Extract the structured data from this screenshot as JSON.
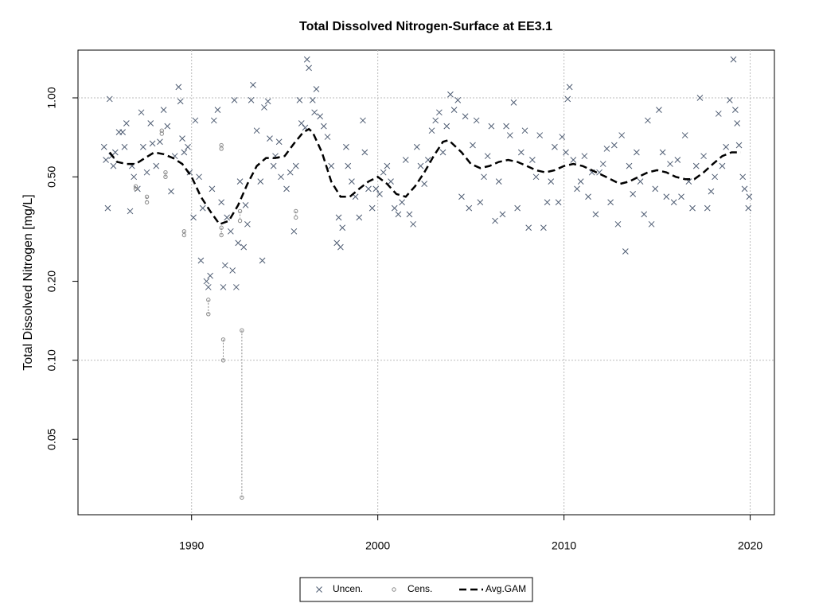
{
  "chart_data": {
    "type": "scatter",
    "title": "Total Dissolved Nitrogen-Surface at EE3.1",
    "y_label": "Total Dissolved Nitrogen [mg/L]",
    "xlim": [
      1983.9,
      2021.3
    ],
    "xticks": [
      1990,
      2000,
      2010,
      2020
    ],
    "ylim": [
      0.0258,
      1.52
    ],
    "ylog": true,
    "yticks": [
      0.05,
      {
        "value": 0.1,
        "label": "0.10"
      },
      {
        "value": 0.2,
        "label": "0.20"
      },
      {
        "value": 0.5,
        "label": "0.50"
      },
      {
        "value": 1,
        "label": "1.00"
      }
    ],
    "grid": true,
    "legend": "bottom",
    "series": [
      {
        "name": "Uncen.",
        "color": "#4f5d73",
        "kind": "points",
        "x": [
          1985.3,
          1985.4,
          1985.5,
          1985.6,
          1985.7,
          1985.8,
          1985.9,
          1986.1,
          1986.3,
          1986.4,
          1986.5,
          1986.7,
          1986.8,
          1986.9,
          1987.1,
          1987.3,
          1987.4,
          1987.6,
          1987.8,
          1987.9,
          1988.1,
          1988.3,
          1988.5,
          1988.7,
          1988.9,
          1989.1,
          1989.3,
          1989.4,
          1989.5,
          1989.6,
          1989.8,
          1989.9,
          1990.1,
          1990.2,
          1990.4,
          1990.5,
          1990.6,
          1990.8,
          1990.9,
          1991.0,
          1991.1,
          1991.2,
          1991.4,
          1991.6,
          1991.7,
          1991.8,
          1991.9,
          1992.1,
          1992.2,
          1992.3,
          1992.4,
          1992.5,
          1992.6,
          1992.8,
          1992.9,
          1993.0,
          1993.2,
          1993.3,
          1993.5,
          1993.7,
          1993.8,
          1993.9,
          1994.1,
          1994.2,
          1994.4,
          1994.5,
          1994.7,
          1994.8,
          1995.1,
          1995.3,
          1995.5,
          1995.6,
          1995.8,
          1995.9,
          1996.1,
          1996.2,
          1996.3,
          1996.5,
          1996.6,
          1996.7,
          1996.9,
          1997.1,
          1997.3,
          1997.5,
          1997.8,
          1997.9,
          1998.0,
          1998.1,
          1998.3,
          1998.4,
          1998.6,
          1998.8,
          1999.0,
          1999.2,
          1999.3,
          1999.5,
          1999.7,
          1999.9,
          2000.1,
          2000.3,
          2000.5,
          2000.7,
          2000.9,
          2001.1,
          2001.3,
          2001.5,
          2001.7,
          2001.9,
          2002.1,
          2002.3,
          2002.5,
          2002.7,
          2002.9,
          2003.1,
          2003.3,
          2003.5,
          2003.7,
          2003.9,
          2004.1,
          2004.3,
          2004.5,
          2004.7,
          2004.9,
          2005.1,
          2005.3,
          2005.5,
          2005.7,
          2005.9,
          2006.1,
          2006.3,
          2006.5,
          2006.7,
          2006.9,
          2007.1,
          2007.3,
          2007.5,
          2007.7,
          2007.9,
          2008.1,
          2008.3,
          2008.5,
          2008.7,
          2008.9,
          2009.1,
          2009.3,
          2009.5,
          2009.7,
          2009.9,
          2010.1,
          2010.2,
          2010.3,
          2010.5,
          2010.7,
          2010.9,
          2011.1,
          2011.3,
          2011.5,
          2011.7,
          2011.9,
          2012.1,
          2012.3,
          2012.5,
          2012.7,
          2012.9,
          2013.1,
          2013.3,
          2013.5,
          2013.7,
          2013.9,
          2014.1,
          2014.3,
          2014.5,
          2014.7,
          2014.9,
          2015.1,
          2015.3,
          2015.5,
          2015.7,
          2015.9,
          2016.1,
          2016.3,
          2016.5,
          2016.7,
          2016.9,
          2017.1,
          2017.3,
          2017.5,
          2017.7,
          2017.9,
          2018.1,
          2018.3,
          2018.5,
          2018.7,
          2018.9,
          2019.1,
          2019.2,
          2019.3,
          2019.4,
          2019.6,
          2019.7,
          2019.9,
          2019.95
        ],
        "values": [
          0.65,
          0.58,
          0.38,
          0.99,
          0.6,
          0.55,
          0.62,
          0.74,
          0.74,
          0.65,
          0.8,
          0.37,
          0.55,
          0.5,
          0.45,
          0.88,
          0.65,
          0.52,
          0.8,
          0.67,
          0.55,
          0.68,
          0.9,
          0.78,
          0.44,
          0.6,
          1.1,
          0.97,
          0.7,
          0.62,
          0.65,
          0.52,
          0.35,
          0.82,
          0.5,
          0.24,
          0.38,
          0.2,
          0.19,
          0.21,
          0.45,
          0.82,
          0.9,
          0.4,
          0.19,
          0.23,
          0.35,
          0.31,
          0.22,
          0.98,
          0.19,
          0.28,
          0.48,
          0.27,
          0.39,
          0.33,
          0.98,
          1.12,
          0.75,
          0.48,
          0.24,
          0.92,
          0.97,
          0.7,
          0.55,
          0.6,
          0.68,
          0.5,
          0.45,
          0.52,
          0.31,
          0.55,
          0.98,
          0.8,
          0.77,
          1.4,
          1.3,
          0.98,
          0.88,
          1.08,
          0.85,
          0.78,
          0.71,
          0.55,
          0.28,
          0.35,
          0.27,
          0.32,
          0.65,
          0.55,
          0.48,
          0.42,
          0.35,
          0.82,
          0.62,
          0.45,
          0.38,
          0.45,
          0.43,
          0.52,
          0.55,
          0.48,
          0.38,
          0.36,
          0.4,
          0.58,
          0.36,
          0.33,
          0.65,
          0.55,
          0.47,
          0.58,
          0.75,
          0.82,
          0.88,
          0.62,
          0.78,
          1.03,
          0.9,
          0.98,
          0.42,
          0.85,
          0.38,
          0.66,
          0.82,
          0.4,
          0.5,
          0.6,
          0.78,
          0.34,
          0.48,
          0.36,
          0.78,
          0.72,
          0.96,
          0.38,
          0.62,
          0.75,
          0.32,
          0.58,
          0.5,
          0.72,
          0.32,
          0.4,
          0.48,
          0.65,
          0.4,
          0.71,
          0.62,
          0.99,
          1.1,
          0.58,
          0.45,
          0.48,
          0.6,
          0.42,
          0.52,
          0.36,
          0.52,
          0.56,
          0.64,
          0.4,
          0.66,
          0.33,
          0.72,
          0.26,
          0.55,
          0.43,
          0.62,
          0.48,
          0.36,
          0.82,
          0.33,
          0.45,
          0.9,
          0.62,
          0.42,
          0.56,
          0.4,
          0.58,
          0.42,
          0.72,
          0.48,
          0.38,
          0.55,
          1.0,
          0.6,
          0.38,
          0.44,
          0.5,
          0.87,
          0.55,
          0.65,
          0.98,
          1.4,
          0.9,
          0.8,
          0.66,
          0.5,
          0.45,
          0.38,
          0.42
        ]
      },
      {
        "name": "Cens.",
        "color": "#8a8a8a",
        "kind": "interval",
        "x": [
          1987.0,
          1987.6,
          1988.4,
          1988.6,
          1989.6,
          1990.9,
          1991.6,
          1991.6,
          1991.7,
          1992.6,
          1992.7,
          1995.6
        ],
        "values": [
          0.46,
          0.42,
          0.75,
          0.52,
          0.31,
          0.17,
          0.66,
          0.32,
          0.12,
          0.37,
          0.13,
          0.37
        ],
        "low": [
          0.45,
          0.4,
          0.73,
          0.5,
          0.3,
          0.15,
          0.64,
          0.3,
          0.1,
          0.34,
          0.03,
          0.35
        ]
      },
      {
        "name": "Avg.GAM",
        "color": "#000000",
        "kind": "line",
        "x": [
          1985.6,
          1986,
          1986.5,
          1987,
          1987.5,
          1988,
          1988.5,
          1989,
          1989.5,
          1990,
          1990.5,
          1991,
          1991.5,
          1992,
          1992.5,
          1993,
          1993.5,
          1994,
          1994.5,
          1995,
          1995.5,
          1996,
          1996.3,
          1996.5,
          1997,
          1997.5,
          1998,
          1998.5,
          1999,
          1999.5,
          2000,
          2000.5,
          2001,
          2001.5,
          2002,
          2002.5,
          2003,
          2003.5,
          2003.8,
          2004,
          2004.5,
          2005,
          2005.5,
          2006,
          2006.5,
          2007,
          2007.5,
          2008,
          2008.5,
          2009,
          2009.5,
          2010,
          2010.5,
          2011,
          2011.5,
          2012,
          2012.5,
          2013,
          2013.5,
          2014,
          2014.5,
          2015,
          2015.5,
          2016,
          2016.5,
          2017,
          2017.5,
          2018,
          2018.5,
          2019,
          2019.5
        ],
        "values": [
          0.62,
          0.57,
          0.56,
          0.56,
          0.59,
          0.62,
          0.61,
          0.59,
          0.56,
          0.5,
          0.42,
          0.37,
          0.33,
          0.34,
          0.39,
          0.47,
          0.55,
          0.59,
          0.59,
          0.6,
          0.67,
          0.74,
          0.76,
          0.74,
          0.62,
          0.48,
          0.42,
          0.42,
          0.45,
          0.48,
          0.5,
          0.47,
          0.43,
          0.42,
          0.46,
          0.52,
          0.6,
          0.68,
          0.69,
          0.67,
          0.62,
          0.56,
          0.54,
          0.55,
          0.57,
          0.58,
          0.57,
          0.55,
          0.53,
          0.52,
          0.53,
          0.55,
          0.56,
          0.55,
          0.53,
          0.51,
          0.49,
          0.47,
          0.48,
          0.5,
          0.52,
          0.53,
          0.52,
          0.5,
          0.49,
          0.49,
          0.52,
          0.56,
          0.6,
          0.62,
          0.62
        ]
      }
    ]
  }
}
